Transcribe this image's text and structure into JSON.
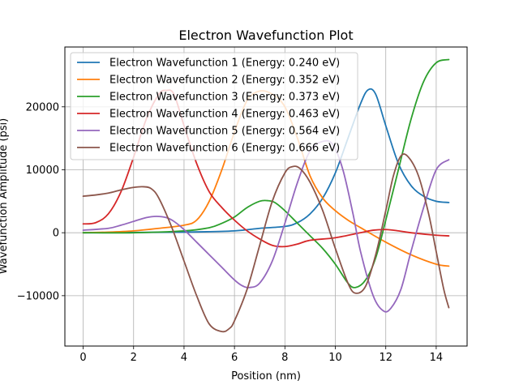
{
  "chart_data": {
    "type": "line",
    "title": "Electron Wavefunction Plot",
    "xlabel": "Position (nm)",
    "ylabel": "Wavefunction Amplitude (psi)",
    "xlim": [
      -0.725,
      15.225
    ],
    "ylim": [
      -18000,
      29500
    ],
    "xticks": [
      0,
      2,
      4,
      6,
      8,
      10,
      12,
      14
    ],
    "yticks": [
      -10000,
      0,
      10000,
      20000
    ],
    "grid": true,
    "legend_position": "upper-left",
    "series": [
      {
        "name": "Electron Wavefunction 1 (Energy: 0.240 eV)",
        "color": "#1f77b4",
        "x": [
          0,
          4,
          6,
          7,
          8,
          8.5,
          9,
          9.5,
          10,
          10.5,
          11,
          11.3,
          11.6,
          12,
          12.5,
          13,
          13.5,
          14,
          14.5
        ],
        "y": [
          0,
          100,
          300,
          700,
          1000,
          1600,
          3000,
          5500,
          9500,
          15000,
          20500,
          22700,
          22000,
          17000,
          11000,
          7500,
          5800,
          5000,
          4800
        ]
      },
      {
        "name": "Electron Wavefunction 2 (Energy: 0.352 eV)",
        "color": "#ff7f0e",
        "x": [
          0,
          1,
          2,
          3,
          4,
          4.5,
          5,
          5.5,
          6,
          6.5,
          7,
          7.5,
          8,
          8.5,
          9,
          9.5,
          10,
          10.5,
          11,
          12,
          13,
          14,
          14.5
        ],
        "y": [
          0,
          100,
          300,
          700,
          1200,
          2000,
          5000,
          10000,
          16000,
          21000,
          22500,
          22000,
          20000,
          15000,
          9000,
          5500,
          3500,
          2000,
          800,
          -1500,
          -3500,
          -5000,
          -5300
        ]
      },
      {
        "name": "Electron Wavefunction 3 (Energy: 0.373 eV)",
        "color": "#2ca02c",
        "x": [
          0,
          2,
          4,
          5,
          5.5,
          6,
          6.5,
          7,
          7.3,
          7.6,
          8,
          8.5,
          9,
          9.5,
          10,
          10.5,
          10.8,
          11.2,
          11.6,
          12,
          12.5,
          13,
          13.5,
          14,
          14.5
        ],
        "y": [
          0,
          0,
          300,
          800,
          1500,
          2500,
          4000,
          5000,
          5100,
          4800,
          3500,
          1500,
          -500,
          -2500,
          -5000,
          -8000,
          -8700,
          -7500,
          -4000,
          2000,
          10000,
          18000,
          24000,
          27000,
          27500
        ]
      },
      {
        "name": "Electron Wavefunction 4 (Energy: 0.463 eV)",
        "color": "#d62728",
        "x": [
          0,
          0.5,
          1,
          1.5,
          2,
          2.5,
          3,
          3.3,
          3.6,
          4,
          4.5,
          5,
          5.5,
          6,
          6.5,
          7,
          7.5,
          8,
          8.5,
          9,
          10,
          11,
          11.5,
          12,
          12.5,
          13,
          14,
          14.5
        ],
        "y": [
          1400,
          1600,
          3000,
          6500,
          12000,
          18000,
          22000,
          22600,
          22000,
          17000,
          11000,
          6500,
          4000,
          2000,
          300,
          -1000,
          -2000,
          -2200,
          -1800,
          -1200,
          -800,
          0,
          400,
          500,
          300,
          0,
          -400,
          -500
        ]
      },
      {
        "name": "Electron Wavefunction 5 (Energy: 0.564 eV)",
        "color": "#9467bd",
        "x": [
          0,
          1,
          1.5,
          2,
          2.5,
          2.9,
          3.3,
          3.6,
          4,
          4.5,
          5,
          5.5,
          6,
          6.3,
          6.6,
          7,
          7.5,
          8,
          8.5,
          9,
          9.5,
          9.9,
          10.3,
          10.7,
          11,
          11.5,
          11.9,
          12.2,
          12.6,
          13,
          13.5,
          14,
          14.5
        ],
        "y": [
          400,
          700,
          1200,
          1800,
          2400,
          2600,
          2400,
          1800,
          500,
          -1500,
          -3500,
          -5500,
          -7500,
          -8400,
          -8700,
          -8000,
          -4500,
          1500,
          8000,
          13000,
          14500,
          14000,
          10000,
          3000,
          -3000,
          -10000,
          -12400,
          -12000,
          -9000,
          -3000,
          4000,
          10000,
          11600
        ]
      },
      {
        "name": "Electron Wavefunction 6 (Energy: 0.666 eV)",
        "color": "#8c564b",
        "x": [
          0,
          0.5,
          1,
          1.5,
          2,
          2.4,
          2.7,
          3,
          3.5,
          4,
          4.5,
          5,
          5.5,
          5.8,
          6,
          6.5,
          7,
          7.5,
          8,
          8.3,
          8.6,
          9,
          9.5,
          10,
          10.5,
          10.8,
          11.2,
          11.6,
          12,
          12.3,
          12.6,
          12.9,
          13.3,
          13.7,
          14,
          14.3,
          14.5
        ],
        "y": [
          5800,
          6000,
          6300,
          6800,
          7200,
          7300,
          7000,
          5500,
          1000,
          -4500,
          -10000,
          -14500,
          -15700,
          -15200,
          -14000,
          -9000,
          -2000,
          5000,
          9500,
          10500,
          10200,
          8000,
          3500,
          -2500,
          -8000,
          -9600,
          -8500,
          -3500,
          3500,
          9000,
          12200,
          12000,
          9000,
          3000,
          -3000,
          -9000,
          -11900
        ]
      }
    ]
  }
}
